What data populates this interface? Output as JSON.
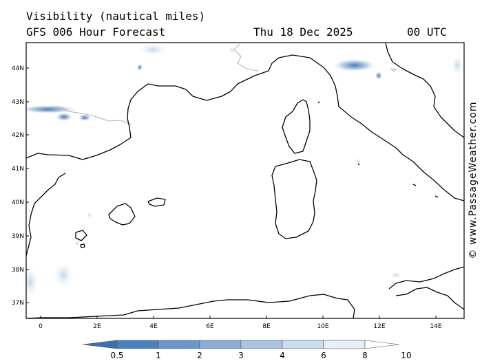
{
  "header": {
    "title": "Visibility (nautical miles)",
    "subtitle": "GFS 006 Hour Forecast",
    "date": "Thu 18 Dec 2025",
    "time": "00 UTC"
  },
  "credit": "© www.PassageWeather.com",
  "map": {
    "lat_labels": [
      "44N",
      "43N",
      "42N",
      "41N",
      "40N",
      "39N",
      "38N",
      "37N"
    ],
    "lon_labels": [
      "0",
      "2E",
      "4E",
      "6E",
      "8E",
      "10E",
      "12E",
      "14E"
    ],
    "coast_color": "#000000",
    "border_color": "#b0b0b0"
  },
  "colorbar": {
    "labels": [
      "0.5",
      "1",
      "2",
      "3",
      "4",
      "6",
      "8",
      "10"
    ],
    "colors": [
      "#3d6fb0",
      "#4a80c0",
      "#6a96cc",
      "#8aacd6",
      "#abc4e2",
      "#cbdcee",
      "#e6eff8",
      "#ffffff"
    ]
  }
}
